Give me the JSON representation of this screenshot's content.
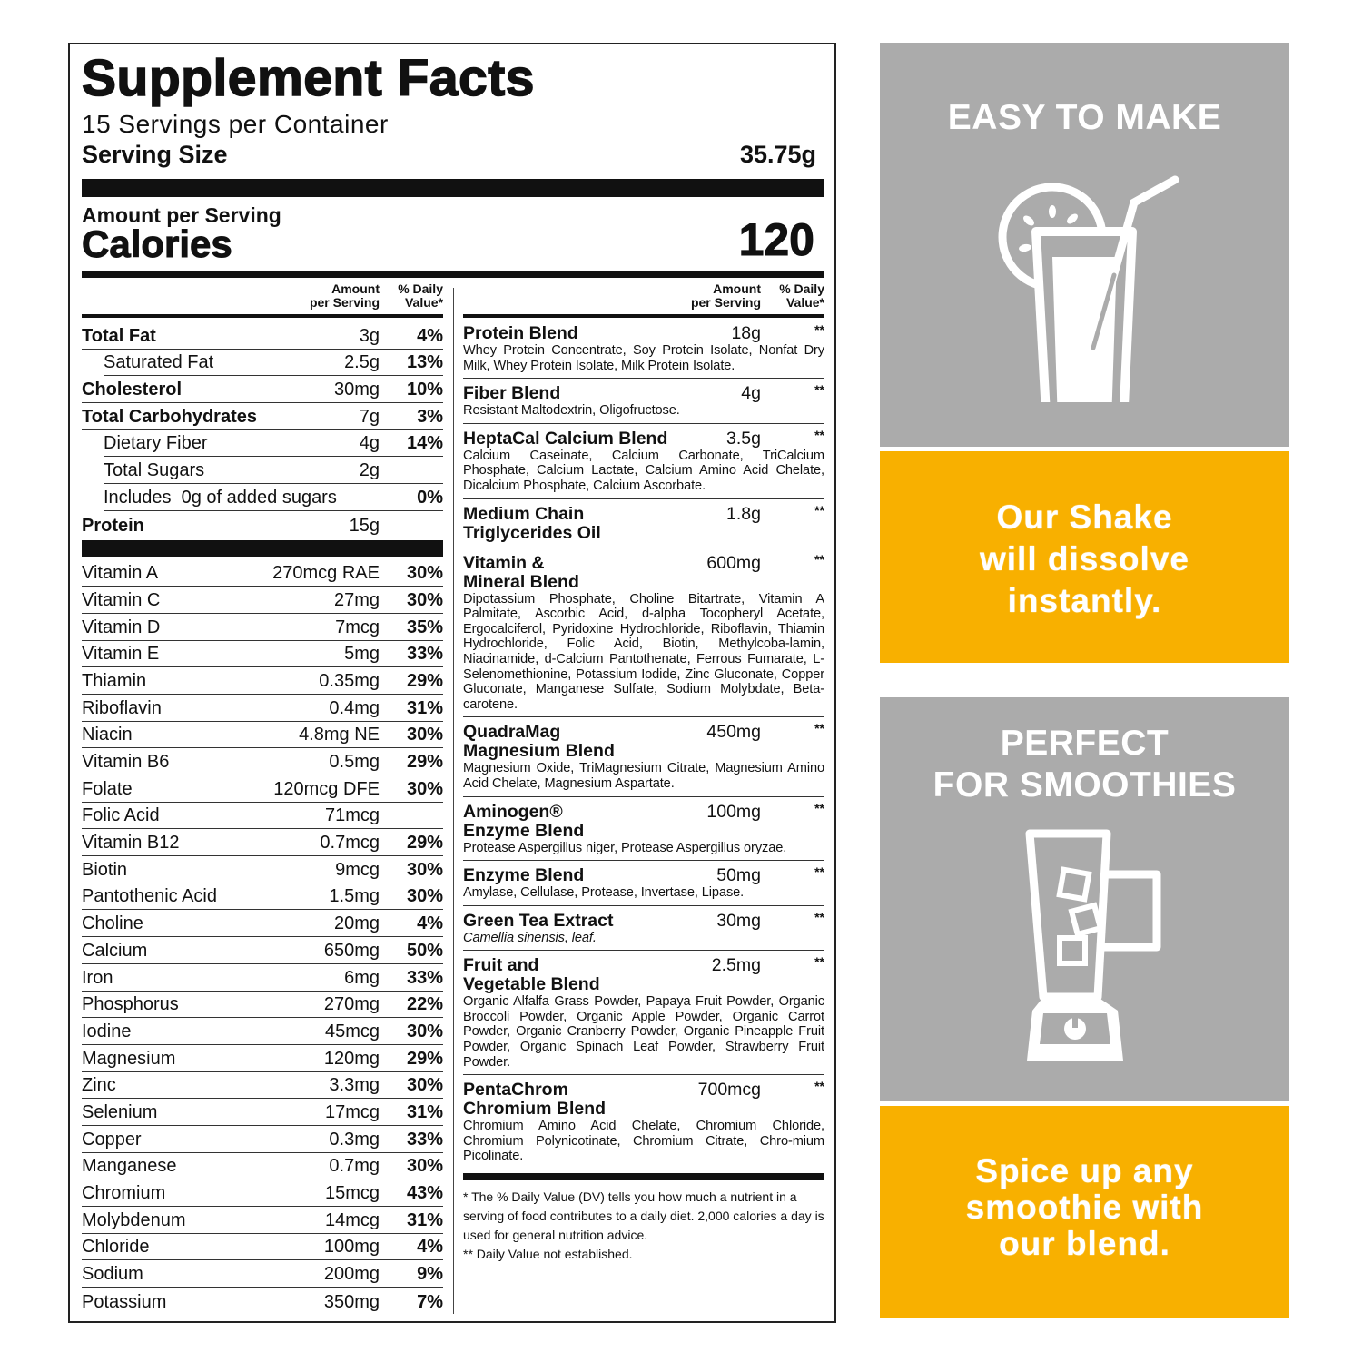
{
  "facts": {
    "title": "Supplement Facts",
    "servings": "15 Servings per Container",
    "serving_size_label": "Serving Size",
    "serving_size_value": "35.75g",
    "amount_per_serving": "Amount per Serving",
    "calories_label": "Calories",
    "calories_value": "120",
    "col_amount": "Amount\nper Serving",
    "col_dv": "% Daily\nValue*",
    "nutrients": [
      {
        "name": "Total Fat",
        "amount": "3g",
        "dv": "4%",
        "style": "b"
      },
      {
        "name": "Saturated Fat",
        "amount": "2.5g",
        "dv": "13%",
        "style": "i"
      },
      {
        "name": "Cholesterol",
        "amount": "30mg",
        "dv": "10%",
        "style": "b"
      },
      {
        "name": "Total Carbohydrates",
        "amount": "7g",
        "dv": "3%",
        "style": "b"
      },
      {
        "name": "Dietary Fiber",
        "amount": "4g",
        "dv": "14%",
        "style": "i"
      },
      {
        "name": "Total Sugars",
        "amount": "2g",
        "dv": "",
        "style": "i"
      },
      {
        "name": "Includes  0g of added sugars",
        "amount": "",
        "dv": "0%",
        "style": "i"
      },
      {
        "name": "Protein",
        "amount": "15g",
        "dv": "",
        "style": "b"
      }
    ],
    "vitamins": [
      {
        "name": "Vitamin A",
        "amount": "270mcg RAE",
        "dv": "30%"
      },
      {
        "name": "Vitamin C",
        "amount": "27mg",
        "dv": "30%"
      },
      {
        "name": "Vitamin D",
        "amount": "7mcg",
        "dv": "35%"
      },
      {
        "name": "Vitamin E",
        "amount": "5mg",
        "dv": "33%"
      },
      {
        "name": "Thiamin",
        "amount": "0.35mg",
        "dv": "29%"
      },
      {
        "name": "Riboflavin",
        "amount": "0.4mg",
        "dv": "31%"
      },
      {
        "name": "Niacin",
        "amount": "4.8mg NE",
        "dv": "30%"
      },
      {
        "name": "Vitamin B6",
        "amount": "0.5mg",
        "dv": "29%"
      },
      {
        "name": "Folate",
        "amount": "120mcg DFE",
        "dv": "30%"
      },
      {
        "name": "Folic Acid",
        "amount": "71mcg",
        "dv": ""
      },
      {
        "name": "Vitamin B12",
        "amount": "0.7mcg",
        "dv": "29%"
      },
      {
        "name": "Biotin",
        "amount": "9mcg",
        "dv": "30%"
      },
      {
        "name": "Pantothenic Acid",
        "amount": "1.5mg",
        "dv": "30%"
      },
      {
        "name": "Choline",
        "amount": "20mg",
        "dv": "4%"
      },
      {
        "name": "Calcium",
        "amount": "650mg",
        "dv": "50%"
      },
      {
        "name": "Iron",
        "amount": "6mg",
        "dv": "33%"
      },
      {
        "name": "Phosphorus",
        "amount": "270mg",
        "dv": "22%"
      },
      {
        "name": "Iodine",
        "amount": "45mcg",
        "dv": "30%"
      },
      {
        "name": "Magnesium",
        "amount": "120mg",
        "dv": "29%"
      },
      {
        "name": "Zinc",
        "amount": "3.3mg",
        "dv": "30%"
      },
      {
        "name": "Selenium",
        "amount": "17mcg",
        "dv": "31%"
      },
      {
        "name": "Copper",
        "amount": "0.3mg",
        "dv": "33%"
      },
      {
        "name": "Manganese",
        "amount": "0.7mg",
        "dv": "30%"
      },
      {
        "name": "Chromium",
        "amount": "15mcg",
        "dv": "43%"
      },
      {
        "name": "Molybdenum",
        "amount": "14mcg",
        "dv": "31%"
      },
      {
        "name": "Chloride",
        "amount": "100mg",
        "dv": "4%"
      },
      {
        "name": "Sodium",
        "amount": "200mg",
        "dv": "9%"
      },
      {
        "name": "Potassium",
        "amount": "350mg",
        "dv": "7%"
      }
    ],
    "blends": [
      {
        "name": "Protein Blend",
        "amount": "18g",
        "dv": "**",
        "ingredients": "Whey Protein Concentrate, Soy Protein Isolate, Nonfat Dry Milk, Whey Protein Isolate, Milk Protein Isolate."
      },
      {
        "name": "Fiber Blend",
        "amount": "4g",
        "dv": "**",
        "ingredients": "Resistant Maltodextrin, Oligofructose."
      },
      {
        "name": "HeptaCal Calcium Blend",
        "amount": "3.5g",
        "dv": "**",
        "ingredients": "Calcium Caseinate, Calcium Carbonate, TriCalcium Phosphate, Calcium Lactate, Calcium Amino Acid Chelate, Dicalcium Phosphate, Calcium Ascorbate."
      },
      {
        "name": "Medium Chain\nTriglycerides Oil",
        "amount": "1.8g",
        "dv": "**",
        "ingredients": ""
      },
      {
        "name": "Vitamin &\nMineral Blend",
        "amount": "600mg",
        "dv": "**",
        "ingredients": "Dipotassium Phosphate, Choline Bitartrate, Vitamin A Palmitate, Ascorbic Acid, d-alpha Tocopheryl Acetate, Ergocalciferol, Pyridoxine Hydrochloride, Riboflavin, Thiamin Hydrochloride, Folic Acid, Biotin, Methylcoba-lamin, Niacinamide, d-Calcium Pantothenate, Ferrous Fumarate, L-Selenomethionine, Potassium Iodide, Zinc Gluconate, Copper Gluconate, Manganese Sulfate, Sodium Molybdate, Beta-carotene."
      },
      {
        "name": "QuadraMag\nMagnesium Blend",
        "amount": "450mg",
        "dv": "**",
        "ingredients": "Magnesium Oxide, TriMagnesium Citrate, Magnesium Amino Acid Chelate, Magnesium Aspartate."
      },
      {
        "name": "Aminogen®\nEnzyme Blend",
        "amount": "100mg",
        "dv": "**",
        "ingredients": "Protease Aspergillus niger, Protease Aspergillus oryzae."
      },
      {
        "name": "Enzyme Blend",
        "amount": "50mg",
        "dv": "**",
        "ingredients": "Amylase, Cellulase, Protease, Invertase, Lipase."
      },
      {
        "name": "Green Tea Extract",
        "amount": "30mg",
        "dv": "**",
        "ingredients": "Camellia sinensis, leaf.",
        "italic": true
      },
      {
        "name": "Fruit and\nVegetable Blend",
        "amount": "2.5mg",
        "dv": "**",
        "ingredients": "Organic Alfalfa Grass Powder, Papaya Fruit Powder, Organic Broccoli Powder, Organic Apple Powder, Organic Carrot Powder, Organic Cranberry Powder, Organic Pineapple Fruit Powder, Organic Spinach Leaf Powder, Strawberry Fruit Powder."
      },
      {
        "name": "PentaChrom\nChromium Blend",
        "amount": "700mcg",
        "dv": "**",
        "ingredients": "Chromium Amino Acid Chelate, Chromium Chloride, Chromium Polynicotinate, Chromium Citrate, Chro-mium Picolinate."
      }
    ],
    "footnote_1": "* The % Daily Value (DV) tells you how much a nutrient in a serving of food contributes to a daily diet. 2,000 calories a day is used for general nutrition advice.",
    "footnote_2": "** Daily Value not established."
  },
  "panels": {
    "easy": "EASY TO MAKE",
    "dissolve": "Our Shake\nwill dissolve\ninstantly.",
    "smoothies": "PERFECT\nFOR SMOOTHIES",
    "spice": "Spice up any\nsmoothie with\nour blend."
  },
  "colors": {
    "gray": "#ababab",
    "yellow": "#f8b000",
    "text": "#111111"
  },
  "icons": [
    "drink-glass-icon",
    "blender-icon"
  ]
}
